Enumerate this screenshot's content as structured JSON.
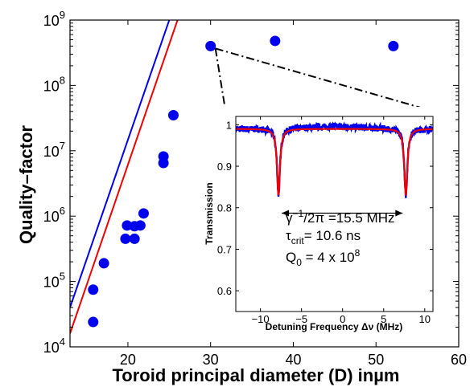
{
  "chart_data": [
    {
      "type": "scatter",
      "title": "",
      "xlabel_prefix": "Toroid principal diameter (D) in",
      "xlabel_unit": "µm",
      "ylabel": "Quality–factor",
      "xlim": [
        13,
        60
      ],
      "ylim": [
        10000,
        1000000000
      ],
      "yscale": "log",
      "xticks": [
        20,
        30,
        40,
        50,
        60
      ],
      "xtick_labels": [
        "20",
        "30",
        "40",
        "50",
        "60"
      ],
      "yticks": [
        10000,
        100000,
        1000000,
        10000000,
        100000000,
        1000000000
      ],
      "ytick_labels": [
        {
          "base": "10",
          "exp": "4"
        },
        {
          "base": "10",
          "exp": "5"
        },
        {
          "base": "10",
          "exp": "6"
        },
        {
          "base": "10",
          "exp": "7"
        },
        {
          "base": "10",
          "exp": "8"
        },
        {
          "base": "10",
          "exp": "9"
        }
      ],
      "points": [
        {
          "x": 15.8,
          "y": 24000
        },
        {
          "x": 15.8,
          "y": 75000
        },
        {
          "x": 17.1,
          "y": 190000
        },
        {
          "x": 19.7,
          "y": 450000
        },
        {
          "x": 19.9,
          "y": 720000
        },
        {
          "x": 20.8,
          "y": 450000
        },
        {
          "x": 20.8,
          "y": 700000
        },
        {
          "x": 21.5,
          "y": 720000
        },
        {
          "x": 21.9,
          "y": 1100000
        },
        {
          "x": 24.3,
          "y": 6500000
        },
        {
          "x": 24.3,
          "y": 8200000
        },
        {
          "x": 25.5,
          "y": 35000000
        },
        {
          "x": 30.0,
          "y": 400000000
        },
        {
          "x": 37.8,
          "y": 480000000
        },
        {
          "x": 52.1,
          "y": 400000000
        }
      ],
      "lines": [
        {
          "color": "#0000ee",
          "from": {
            "x": 13.0,
            "y": 40000
          },
          "to": {
            "x": 25.0,
            "y": 1000000000
          }
        },
        {
          "color": "#ee0000",
          "from": {
            "x": 13.0,
            "y": 16000
          },
          "to": {
            "x": 26.0,
            "y": 1000000000
          }
        }
      ],
      "marker_color": "#0000ee",
      "grid": false
    },
    {
      "type": "line",
      "title": "",
      "xlabel": "Detuning Frequency Δν (MHz)",
      "ylabel": "Transmission",
      "xlim": [
        -13,
        11
      ],
      "ylim": [
        0.55,
        1.02
      ],
      "xticks": [
        -10,
        -5,
        0,
        5,
        10
      ],
      "xtick_labels": [
        "−10",
        "−5",
        "0",
        "5",
        "10"
      ],
      "yticks": [
        0.6,
        0.7,
        0.8,
        0.9,
        1.0
      ],
      "ytick_labels": [
        "0.6",
        "0.7",
        "0.8",
        "0.9",
        "1"
      ],
      "dips": [
        {
          "center": -7.8,
          "depth": 0.16
        },
        {
          "center": 7.7,
          "depth": 0.16
        }
      ],
      "baseline": 0.99,
      "half_width": 0.22,
      "series": [
        {
          "kind": "measured",
          "color": "#0000ee"
        },
        {
          "kind": "fit",
          "color": "#ee0000"
        }
      ],
      "splitting_arrow": {
        "x1": -7.8,
        "x2": 7.7,
        "y": 0.787
      },
      "annotations": [
        {
          "id": "gamma",
          "parts": [
            {
              "t": "γ"
            },
            {
              "t": "−1",
              "sup": true
            },
            {
              "t": "/2π =15.5 MHz"
            }
          ]
        },
        {
          "id": "tau",
          "parts": [
            {
              "t": "τ"
            },
            {
              "t": "crit",
              "sub": true
            },
            {
              "t": "= 10.6 ns"
            }
          ]
        },
        {
          "id": "q0",
          "parts": [
            {
              "t": "Q"
            },
            {
              "t": "0",
              "sub": true
            },
            {
              "t": " = 4 x 10"
            },
            {
              "t": "8",
              "sup": true
            }
          ]
        }
      ],
      "grid": false
    }
  ]
}
